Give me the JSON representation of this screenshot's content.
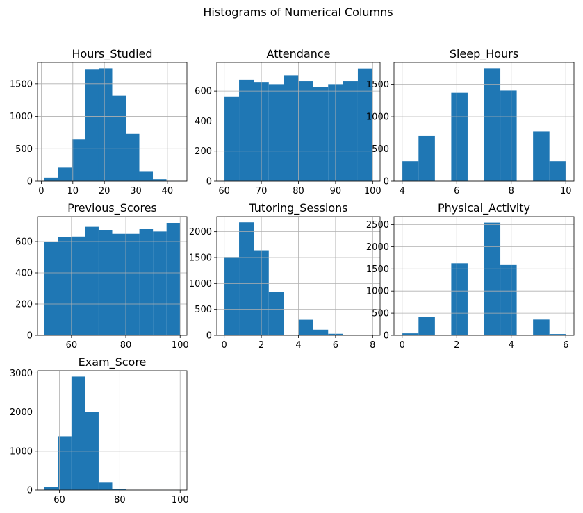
{
  "figure": {
    "suptitle": "Histograms of Numerical Columns",
    "bar_color": "#1f77b4",
    "grid_color": "#b0b0b0",
    "grid": true
  },
  "chart_data": [
    {
      "type": "bar",
      "title": "Hours_Studied",
      "xlabel": "",
      "ylabel": "",
      "bin_edges": [
        1,
        5.3,
        9.6,
        13.9,
        18.2,
        22.5,
        26.8,
        31.1,
        35.4,
        39.7,
        44
      ],
      "values": [
        55,
        210,
        650,
        1720,
        1740,
        1320,
        730,
        145,
        30,
        5
      ],
      "xlim": [
        -1.2,
        46.2
      ],
      "ylim": [
        0,
        1830
      ],
      "xticks": [
        0,
        10,
        20,
        30,
        40
      ],
      "xtick_labels": [
        "0",
        "10",
        "20",
        "30",
        "40"
      ],
      "yticks": [
        0,
        500,
        1000,
        1500
      ],
      "ytick_labels": [
        "0",
        "500",
        "1000",
        "1500"
      ]
    },
    {
      "type": "bar",
      "title": "Attendance",
      "xlabel": "",
      "ylabel": "",
      "bin_edges": [
        60,
        64,
        68,
        72,
        76,
        80,
        84,
        88,
        92,
        96,
        100
      ],
      "values": [
        560,
        675,
        660,
        645,
        705,
        665,
        625,
        645,
        665,
        750
      ],
      "xlim": [
        58,
        102
      ],
      "ylim": [
        0,
        790
      ],
      "xticks": [
        60,
        70,
        80,
        90,
        100
      ],
      "xtick_labels": [
        "60",
        "70",
        "80",
        "90",
        "100"
      ],
      "yticks": [
        0,
        200,
        400,
        600
      ],
      "ytick_labels": [
        "0",
        "200",
        "400",
        "600"
      ]
    },
    {
      "type": "bar",
      "title": "Sleep_Hours",
      "xlabel": "",
      "ylabel": "",
      "bin_edges": [
        4,
        4.6,
        5.2,
        5.8,
        6.4,
        7,
        7.6,
        8.2,
        8.8,
        9.4,
        10
      ],
      "values": [
        310,
        700,
        0,
        1370,
        0,
        1750,
        1405,
        0,
        770,
        310
      ],
      "xlim": [
        3.7,
        10.3
      ],
      "ylim": [
        0,
        1840
      ],
      "xticks": [
        4,
        6,
        8,
        10
      ],
      "xtick_labels": [
        "4",
        "6",
        "8",
        "10"
      ],
      "yticks": [
        0,
        500,
        1000,
        1500
      ],
      "ytick_labels": [
        "0",
        "500",
        "1000",
        "1500"
      ]
    },
    {
      "type": "bar",
      "title": "Previous_Scores",
      "xlabel": "",
      "ylabel": "",
      "bin_edges": [
        50,
        55,
        60,
        65,
        70,
        75,
        80,
        85,
        90,
        95,
        100
      ],
      "values": [
        600,
        630,
        632,
        695,
        675,
        650,
        650,
        680,
        665,
        720
      ],
      "xlim": [
        47.5,
        102.5
      ],
      "ylim": [
        0,
        760
      ],
      "xticks": [
        60,
        80,
        100
      ],
      "xtick_labels": [
        "60",
        "80",
        "100"
      ],
      "yticks": [
        0,
        200,
        400,
        600
      ],
      "ytick_labels": [
        "0",
        "200",
        "400",
        "600"
      ]
    },
    {
      "type": "bar",
      "title": "Tutoring_Sessions",
      "xlabel": "",
      "ylabel": "",
      "bin_edges": [
        0,
        0.8,
        1.6,
        2.4,
        3.2,
        4,
        4.8,
        5.6,
        6.4,
        7.2,
        8
      ],
      "values": [
        1510,
        2180,
        1640,
        840,
        0,
        300,
        110,
        30,
        10,
        5
      ],
      "xlim": [
        -0.4,
        8.4
      ],
      "ylim": [
        0,
        2290
      ],
      "xticks": [
        0,
        2,
        4,
        6,
        8
      ],
      "xtick_labels": [
        "0",
        "2",
        "4",
        "6",
        "8"
      ],
      "yticks": [
        0,
        500,
        1000,
        1500,
        2000
      ],
      "ytick_labels": [
        "0",
        "500",
        "1000",
        "1500",
        "2000"
      ]
    },
    {
      "type": "bar",
      "title": "Physical_Activity",
      "xlabel": "",
      "ylabel": "",
      "bin_edges": [
        0,
        0.6,
        1.2,
        1.8,
        2.4,
        3,
        3.6,
        4.2,
        4.8,
        5.4,
        6
      ],
      "values": [
        45,
        420,
        0,
        1625,
        0,
        2545,
        1585,
        0,
        355,
        30
      ],
      "xlim": [
        -0.3,
        6.3
      ],
      "ylim": [
        0,
        2680
      ],
      "xticks": [
        0,
        2,
        4,
        6
      ],
      "xtick_labels": [
        "0",
        "2",
        "4",
        "6"
      ],
      "yticks": [
        0,
        500,
        1000,
        1500,
        2000,
        2500
      ],
      "ytick_labels": [
        "0",
        "500",
        "1000",
        "1500",
        "2000",
        "2500"
      ]
    },
    {
      "type": "bar",
      "title": "Exam_Score",
      "xlabel": "",
      "ylabel": "",
      "bin_edges": [
        55,
        59.5,
        64,
        68.5,
        73,
        77.5,
        82,
        86.5,
        91,
        95.5,
        100
      ],
      "values": [
        80,
        1380,
        2910,
        2010,
        190,
        20,
        5,
        2,
        1,
        1
      ],
      "xlim": [
        52.75,
        102.25
      ],
      "ylim": [
        0,
        3060
      ],
      "xticks": [
        60,
        80,
        100
      ],
      "xtick_labels": [
        "60",
        "80",
        "100"
      ],
      "yticks": [
        0,
        1000,
        2000,
        3000
      ],
      "ytick_labels": [
        "0",
        "1000",
        "2000",
        "3000"
      ]
    }
  ]
}
